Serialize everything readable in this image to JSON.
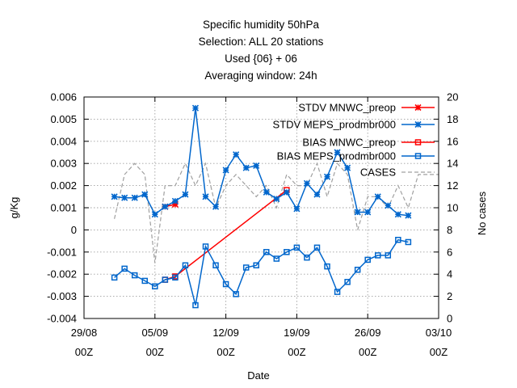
{
  "chart_data": {
    "type": "line",
    "title_lines": [
      "Specific humidity 50hPa",
      "Selection: ALL      20 stations",
      "Used {06} + 06",
      "Averaging window: 24h"
    ],
    "xlabel": "Date",
    "ylabel": "g/Kg",
    "y2label": "No cases",
    "x_ticks": [
      {
        "day": 0,
        "date": "29/08",
        "hour": "00Z"
      },
      {
        "day": 7,
        "date": "05/09",
        "hour": "00Z"
      },
      {
        "day": 14,
        "date": "12/09",
        "hour": "00Z"
      },
      {
        "day": 21,
        "date": "19/09",
        "hour": "00Z"
      },
      {
        "day": 28,
        "date": "26/09",
        "hour": "00Z"
      },
      {
        "day": 35,
        "date": "03/10",
        "hour": "00Z"
      }
    ],
    "xlim": [
      0,
      35
    ],
    "ylim": [
      -0.004,
      0.006
    ],
    "y_ticks": [
      -0.004,
      -0.003,
      -0.002,
      -0.001,
      0,
      0.001,
      0.002,
      0.003,
      0.004,
      0.005,
      0.006
    ],
    "y_tick_labels": [
      "-0.004",
      "-0.003",
      "-0.002",
      "-0.001",
      "0",
      "0.001",
      "0.002",
      "0.003",
      "0.004",
      "0.005",
      "0.006"
    ],
    "y2lim": [
      0,
      20
    ],
    "y2_ticks": [
      0,
      2,
      4,
      6,
      8,
      10,
      12,
      14,
      16,
      18,
      20
    ],
    "grid": true,
    "legend_position": "top-right",
    "series": [
      {
        "name": "STDV MNWC_preop",
        "color": "#ff0000",
        "marker": "star",
        "axis": "y1",
        "x": [
          8,
          9
        ],
        "y": [
          0.00105,
          0.00115
        ]
      },
      {
        "name": "STDV MEPS_prodmbr000",
        "color": "#0066cc",
        "marker": "star",
        "axis": "y1",
        "x": [
          3,
          4,
          5,
          6,
          7,
          8,
          9,
          10,
          11,
          12,
          13,
          14,
          15,
          16,
          17,
          18,
          19,
          20,
          21,
          22,
          23,
          24,
          25,
          26,
          27,
          28,
          29,
          30,
          31,
          32,
          33
        ],
        "y": [
          0.0015,
          0.00145,
          0.00145,
          0.0016,
          0.0007,
          0.00105,
          0.0013,
          0.0016,
          0.0055,
          0.0015,
          0.00105,
          0.0027,
          0.0034,
          0.0028,
          0.0029,
          0.0017,
          0.0014,
          0.0017,
          0.00095,
          0.0021,
          0.0016,
          0.0024,
          0.0035,
          0.0028,
          0.0008,
          0.0008,
          0.0015,
          0.0011,
          0.0007,
          0.00065,
          null
        ]
      },
      {
        "name": "BIAS MNWC_preop",
        "color": "#ff0000",
        "marker": "square",
        "axis": "y1",
        "x": [
          8,
          9,
          20
        ],
        "y": [
          -0.00225,
          -0.0021,
          0.0018
        ]
      },
      {
        "name": "BIAS MEPS_prodmbr000",
        "color": "#0066cc",
        "marker": "square",
        "axis": "y1",
        "x": [
          3,
          4,
          5,
          6,
          7,
          8,
          9,
          10,
          11,
          12,
          13,
          14,
          15,
          16,
          17,
          18,
          19,
          20,
          21,
          22,
          23,
          24,
          25,
          26,
          27,
          28,
          29,
          30,
          31,
          32,
          33
        ],
        "y": [
          -0.00215,
          -0.00175,
          -0.00205,
          -0.0023,
          -0.00255,
          -0.00225,
          -0.00215,
          -0.0016,
          -0.0034,
          -0.00075,
          -0.0016,
          -0.00245,
          -0.0029,
          -0.0017,
          -0.0016,
          -0.001,
          -0.0013,
          -0.001,
          -0.0008,
          -0.00125,
          -0.0008,
          -0.00165,
          -0.0028,
          -0.00235,
          -0.0018,
          -0.00135,
          -0.00115,
          -0.00115,
          -0.00045,
          -0.00055,
          null
        ]
      },
      {
        "name": "CASES",
        "color": "#a0a0a0",
        "marker": "none",
        "dashed": true,
        "axis": "y2",
        "x": [
          3,
          4,
          5,
          6,
          7,
          8,
          9,
          10,
          11,
          12,
          13,
          14,
          15,
          16,
          17,
          18,
          19,
          20,
          21,
          22,
          23,
          24,
          25,
          26,
          27,
          28,
          29,
          30,
          31,
          32,
          33,
          34,
          35
        ],
        "y": [
          9,
          13,
          14,
          13,
          5,
          12,
          12,
          14,
          12,
          14,
          10,
          12,
          13,
          12,
          11,
          12,
          10,
          13,
          12,
          12,
          14,
          11,
          14,
          13,
          8,
          11,
          11,
          10,
          12,
          10,
          13,
          13,
          13
        ]
      }
    ]
  }
}
